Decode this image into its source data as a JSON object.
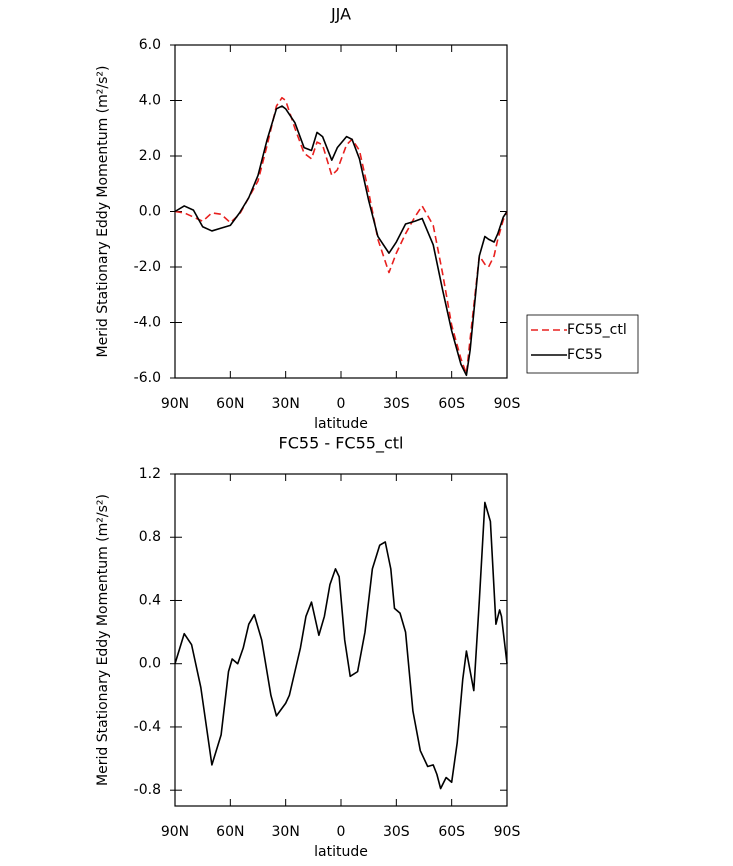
{
  "chart_data": [
    {
      "type": "line",
      "title": "JJA",
      "xlabel": "latitude",
      "ylabel": "Merid Stationary Eddy Momentum (m²/s²)",
      "x": [
        90,
        85,
        80,
        75,
        70,
        65,
        60,
        55,
        50,
        45,
        40,
        35,
        32,
        30,
        25,
        20,
        16,
        13,
        10,
        5,
        2,
        -3,
        -6,
        -10,
        -15,
        -20,
        -26,
        -30,
        -35,
        -40,
        -44,
        -50,
        -55,
        -60,
        -65,
        -68,
        -70,
        -75,
        -78,
        -80,
        -83,
        -85,
        -88,
        -90
      ],
      "series": [
        {
          "name": "FC55_ctl",
          "color": "#e8201e",
          "dash": true,
          "values": [
            0,
            -0.05,
            -0.2,
            -0.35,
            -0.05,
            -0.1,
            -0.4,
            -0.1,
            0.5,
            1.1,
            2.4,
            3.8,
            4.1,
            4.0,
            3.0,
            2.1,
            1.9,
            2.5,
            2.4,
            1.3,
            1.5,
            2.4,
            2.6,
            2.2,
            0.7,
            -1.0,
            -2.2,
            -1.5,
            -0.8,
            -0.2,
            0.2,
            -0.5,
            -2.2,
            -4.1,
            -5.3,
            -5.85,
            -4.6,
            -1.6,
            -1.9,
            -2.0,
            -1.6,
            -1.0,
            -0.3,
            0
          ]
        },
        {
          "name": "FC55",
          "color": "#000000",
          "dash": false,
          "values": [
            0,
            0.2,
            0.05,
            -0.55,
            -0.7,
            -0.6,
            -0.5,
            -0.05,
            0.5,
            1.3,
            2.6,
            3.7,
            3.8,
            3.7,
            3.2,
            2.3,
            2.2,
            2.85,
            2.7,
            1.85,
            2.3,
            2.7,
            2.6,
            1.9,
            0.4,
            -0.9,
            -1.5,
            -1.1,
            -0.45,
            -0.35,
            -0.25,
            -1.2,
            -2.8,
            -4.3,
            -5.5,
            -5.9,
            -5.0,
            -1.6,
            -0.9,
            -1.0,
            -1.1,
            -0.8,
            -0.2,
            0
          ]
        }
      ],
      "xlim": [
        90,
        -90
      ],
      "xticks": [
        {
          "value": 90,
          "label": "90N"
        },
        {
          "value": 60,
          "label": "60N"
        },
        {
          "value": 30,
          "label": "30N"
        },
        0,
        {
          "value": -30,
          "label": "30S"
        },
        {
          "value": -60,
          "label": "60S"
        },
        {
          "value": -90,
          "label": "90S"
        }
      ],
      "ylim": [
        -6,
        6
      ],
      "yticks": [
        {
          "value": 6,
          "label": "6.0"
        },
        {
          "value": 4,
          "label": "4.0"
        },
        {
          "value": 2,
          "label": "2.0"
        },
        {
          "value": 0,
          "label": "0.0"
        },
        {
          "value": -2,
          "label": "-2.0"
        },
        {
          "value": -4,
          "label": "-4.0"
        },
        {
          "value": -6,
          "label": "-6.0"
        }
      ],
      "legend": "outside-right"
    },
    {
      "type": "line",
      "title": "FC55 - FC55_ctl",
      "xlabel": "latitude",
      "ylabel": "Merid Stationary Eddy Momentum (m²/s²)",
      "x": [
        90,
        85,
        81,
        76,
        70,
        65,
        61,
        59,
        56,
        53,
        50,
        47,
        43,
        38,
        35,
        30,
        28,
        25,
        22,
        19,
        16,
        12,
        9,
        6,
        3,
        1,
        -2,
        -5,
        -9,
        -13,
        -17,
        -21,
        -24,
        -27,
        -29,
        -32,
        -35,
        -39,
        -43,
        -47,
        -50,
        -52,
        -54,
        -57,
        -60,
        -63,
        -66,
        -68,
        -72,
        -75,
        -78,
        -81,
        -84,
        -86,
        -87,
        -90
      ],
      "series": [
        {
          "color": "#000000",
          "dash": false,
          "values": [
            0,
            0.19,
            0.12,
            -0.15,
            -0.64,
            -0.45,
            -0.05,
            0.03,
            0,
            0.1,
            0.25,
            0.31,
            0.15,
            -0.2,
            -0.33,
            -0.25,
            -0.2,
            -0.05,
            0.1,
            0.3,
            0.39,
            0.18,
            0.3,
            0.5,
            0.6,
            0.55,
            0.15,
            -0.08,
            -0.05,
            0.2,
            0.6,
            0.75,
            0.77,
            0.6,
            0.35,
            0.32,
            0.2,
            -0.3,
            -0.55,
            -0.65,
            -0.64,
            -0.7,
            -0.79,
            -0.72,
            -0.75,
            -0.5,
            -0.1,
            0.08,
            -0.17,
            0.4,
            1.02,
            0.9,
            0.25,
            0.34,
            0.3,
            0
          ]
        }
      ],
      "xlim": [
        90,
        -90
      ],
      "xticks": [
        {
          "value": 90,
          "label": "90N"
        },
        {
          "value": 60,
          "label": "60N"
        },
        {
          "value": 30,
          "label": "30N"
        },
        0,
        {
          "value": -30,
          "label": "30S"
        },
        {
          "value": -60,
          "label": "60S"
        },
        {
          "value": -90,
          "label": "90S"
        }
      ],
      "ylim": [
        -0.9,
        1.2
      ],
      "yticks": [
        1.2,
        0.8,
        0.4,
        {
          "value": 0,
          "label": "0.0"
        },
        -0.4,
        -0.8
      ]
    }
  ]
}
